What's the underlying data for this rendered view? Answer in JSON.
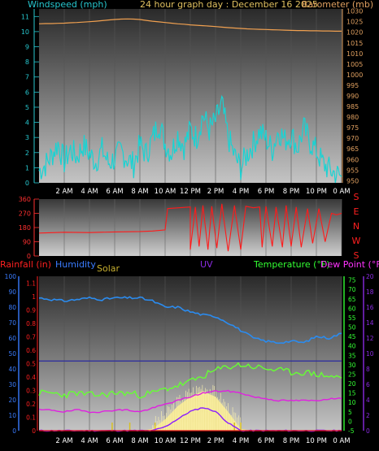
{
  "header": {
    "wind_label": "Windspeed (mph)",
    "title": "24 hour graph day : December 16 2025",
    "baro_label": "Barometer (mb)"
  },
  "colors": {
    "background": "#000000",
    "plot_bg_top": "#2e2e2e",
    "plot_bg_bottom": "#bdbdbd",
    "wind": "#19d3d3",
    "barometer": "#f0a050",
    "direction": "#ff1a1a",
    "humidity": "#2b8cf0",
    "solar": "#f7e98c",
    "uv": "#8a1cff",
    "temperature": "#66ff33",
    "dewpoint": "#e020e0",
    "rainfall": "#e01010",
    "axis_text_left_top": "#27c7cf",
    "axis_text_right_top": "#e0a060",
    "rain_text": "#ff2020",
    "humidity_text": "#3a7cff",
    "solar_text": "#c8b030",
    "uv_text": "#8a2be2",
    "temp_text": "#33ff33",
    "dew_text": "#ff33ff"
  },
  "time_axis": [
    "2 AM",
    "4 AM",
    "6 AM",
    "8 AM",
    "10 AM",
    "12 PM",
    "2 PM",
    "4 PM",
    "6 PM",
    "8 PM",
    "10 PM",
    "0 AM"
  ],
  "wind_axis": [
    "0",
    "1",
    "2",
    "3",
    "4",
    "5",
    "6",
    "7",
    "8",
    "9",
    "10",
    "11"
  ],
  "baro_axis": [
    "950",
    "955",
    "960",
    "965",
    "970",
    "975",
    "980",
    "985",
    "990",
    "995",
    "1000",
    "1005",
    "1010",
    "1015",
    "1020",
    "1025",
    "1030"
  ],
  "dir_axis": [
    "0",
    "90",
    "180",
    "270",
    "360"
  ],
  "compass": [
    "S",
    "E",
    "N",
    "W",
    "S"
  ],
  "bottom": {
    "rain_label": "Rainfall (in)",
    "humidity_label": "Humidity",
    "solar_label": "Solar",
    "uv_label": "UV",
    "temp_label": "Temperature (°F)",
    "dew_label": "Dew Point (°F)",
    "humidity_axis": [
      "0",
      "5",
      "10",
      "15",
      "20",
      "25",
      "30",
      "35",
      "40",
      "45",
      "50",
      "55",
      "60",
      "65",
      "70",
      "75",
      "80",
      "85",
      "90",
      "95",
      "100"
    ],
    "rain_axis": [
      "0",
      "0.1",
      "0.2",
      "0.3",
      "0.4",
      "0.5",
      "0.6",
      "0.7",
      "0.8",
      "0.9",
      "1",
      "1.1"
    ],
    "temp_axis": [
      "-5",
      "0",
      "5",
      "10",
      "15",
      "20",
      "25",
      "30",
      "35",
      "40",
      "45",
      "50",
      "55",
      "60",
      "65",
      "70",
      "75"
    ],
    "uv_axis": [
      "0",
      "2",
      "4",
      "6",
      "8",
      "10",
      "12",
      "14",
      "16",
      "18",
      "20"
    ]
  },
  "chart_data": [
    {
      "type": "line",
      "name": "wind-barometer",
      "x_hours": [
        0,
        0.5,
        1,
        1.5,
        2,
        2.5,
        3,
        3.5,
        4,
        4.5,
        5,
        5.5,
        6,
        6.5,
        7,
        7.5,
        8,
        8.5,
        9,
        9.5,
        10,
        10.5,
        11,
        11.5,
        12,
        12.5,
        13,
        13.5,
        14,
        14.5,
        15,
        15.5,
        16,
        16.5,
        17,
        17.5,
        18,
        18.5,
        19,
        19.5,
        20,
        20.5,
        21,
        21.5,
        22,
        22.5,
        23,
        23.5,
        24
      ],
      "series": [
        {
          "name": "Windspeed (mph)",
          "axis": "left",
          "ylim": [
            0,
            11.5
          ],
          "values": [
            0.8,
            1.2,
            1.8,
            2.6,
            1.4,
            2.2,
            1.7,
            2.5,
            1.9,
            1.4,
            2.2,
            1.3,
            1.6,
            2.1,
            1.6,
            1.2,
            2.5,
            1.9,
            2.9,
            4.0,
            2.6,
            2.0,
            3.2,
            2.4,
            3.5,
            3.0,
            4.5,
            3.5,
            4.1,
            5.2,
            3.0,
            1.8,
            1.0,
            1.9,
            2.6,
            3.4,
            2.9,
            2.2,
            3.5,
            2.8,
            3.2,
            2.3,
            3.6,
            2.7,
            2.1,
            1.3,
            0.9,
            0.6,
            0.4
          ]
        },
        {
          "name": "Barometer (mb)",
          "axis": "right",
          "ylim": [
            949,
            1031
          ],
          "values": [
            1024.0,
            1024.1,
            1024.1,
            1024.2,
            1024.3,
            1024.5,
            1024.6,
            1024.8,
            1025.0,
            1025.2,
            1025.5,
            1025.8,
            1026.0,
            1026.2,
            1026.3,
            1026.2,
            1026.0,
            1025.6,
            1025.2,
            1024.9,
            1024.6,
            1024.3,
            1024.0,
            1023.8,
            1023.5,
            1023.3,
            1023.1,
            1022.9,
            1022.7,
            1022.4,
            1022.2,
            1022.0,
            1021.8,
            1021.6,
            1021.5,
            1021.4,
            1021.3,
            1021.2,
            1021.1,
            1021.0,
            1020.9,
            1020.8,
            1020.8,
            1020.7,
            1020.7,
            1020.6,
            1020.6,
            1020.5,
            1020.5
          ]
        }
      ]
    },
    {
      "type": "line",
      "name": "wind-direction",
      "ylim": [
        0,
        360
      ],
      "series": [
        {
          "name": "Direction",
          "points": [
            [
              0,
              145
            ],
            [
              2,
              150
            ],
            [
              4,
              148
            ],
            [
              6,
              152
            ],
            [
              8,
              155
            ],
            [
              9,
              158
            ],
            [
              10,
              165
            ],
            [
              10.2,
              300
            ],
            [
              12,
              310
            ],
            [
              12,
              40
            ],
            [
              12.4,
              310
            ],
            [
              12.7,
              60
            ],
            [
              13,
              320
            ],
            [
              13.4,
              40
            ],
            [
              13.7,
              315
            ],
            [
              14.1,
              50
            ],
            [
              14.5,
              330
            ],
            [
              15,
              30
            ],
            [
              15.5,
              320
            ],
            [
              16,
              40
            ],
            [
              16.4,
              315
            ],
            [
              17,
              305
            ],
            [
              17.5,
              310
            ],
            [
              17.7,
              55
            ],
            [
              18,
              315
            ],
            [
              18.5,
              60
            ],
            [
              18.8,
              310
            ],
            [
              19.3,
              55
            ],
            [
              19.6,
              320
            ],
            [
              20,
              60
            ],
            [
              20.4,
              310
            ],
            [
              20.8,
              55
            ],
            [
              21.3,
              300
            ],
            [
              21.7,
              80
            ],
            [
              22.2,
              300
            ],
            [
              22.7,
              90
            ],
            [
              23.2,
              270
            ],
            [
              23.6,
              260
            ],
            [
              24,
              270
            ]
          ]
        }
      ]
    },
    {
      "type": "area",
      "name": "temperature-humidity-solar-uv-rain",
      "x_hours": [
        0,
        1,
        2,
        3,
        4,
        5,
        6,
        7,
        8,
        9,
        10,
        11,
        12,
        13,
        14,
        15,
        16,
        17,
        18,
        19,
        20,
        21,
        22,
        23,
        24
      ],
      "series": [
        {
          "name": "Humidity",
          "axis": "humidity",
          "ylim": [
            0,
            100
          ],
          "values": [
            86,
            85,
            84,
            85,
            86,
            85,
            86,
            86,
            86,
            84,
            80,
            80,
            77,
            75,
            74,
            70,
            65,
            60,
            58,
            57,
            58,
            57,
            61,
            60,
            63
          ]
        },
        {
          "name": "Temperature (°F)",
          "axis": "temp",
          "ylim": [
            -5,
            77
          ],
          "values": [
            15,
            15,
            14,
            15,
            14,
            14,
            15,
            15,
            14,
            15,
            17,
            19,
            21,
            24,
            27,
            29,
            30,
            29,
            28,
            27,
            26,
            26,
            25,
            24,
            23
          ]
        },
        {
          "name": "Dew Point (°F)",
          "axis": "temp",
          "ylim": [
            -5,
            77
          ],
          "values": [
            6,
            6,
            5,
            6,
            5,
            5,
            6,
            6,
            5,
            7,
            9,
            11,
            13,
            15,
            16,
            16,
            15,
            13,
            12,
            11,
            11,
            11,
            11,
            12,
            12
          ]
        },
        {
          "name": "Solar",
          "axis": "temp",
          "ylim": [
            -5,
            77
          ],
          "values": [
            -5,
            -5,
            -5,
            -5,
            -5,
            -5,
            -5,
            -5,
            -5,
            -4,
            1,
            8,
            13,
            16,
            13,
            5,
            -4,
            -5,
            -5,
            -5,
            -5,
            -5,
            -5,
            -5,
            -5
          ]
        },
        {
          "name": "UV",
          "axis": "uv",
          "ylim": [
            0,
            20
          ],
          "values": [
            0,
            0,
            0,
            0,
            0,
            0,
            0,
            0,
            0,
            0,
            0.5,
            1.5,
            2.5,
            3.0,
            2.5,
            1.0,
            0,
            0,
            0,
            0,
            0,
            0,
            0,
            0,
            0
          ]
        },
        {
          "name": "Rainfall (in)",
          "axis": "rain",
          "ylim": [
            0,
            1.15
          ],
          "values": [
            0,
            0,
            0,
            0,
            0,
            0,
            0,
            0,
            0,
            0,
            0,
            0,
            0,
            0,
            0,
            0,
            0,
            0,
            0,
            0,
            0,
            0,
            0,
            0,
            0
          ]
        }
      ]
    }
  ]
}
